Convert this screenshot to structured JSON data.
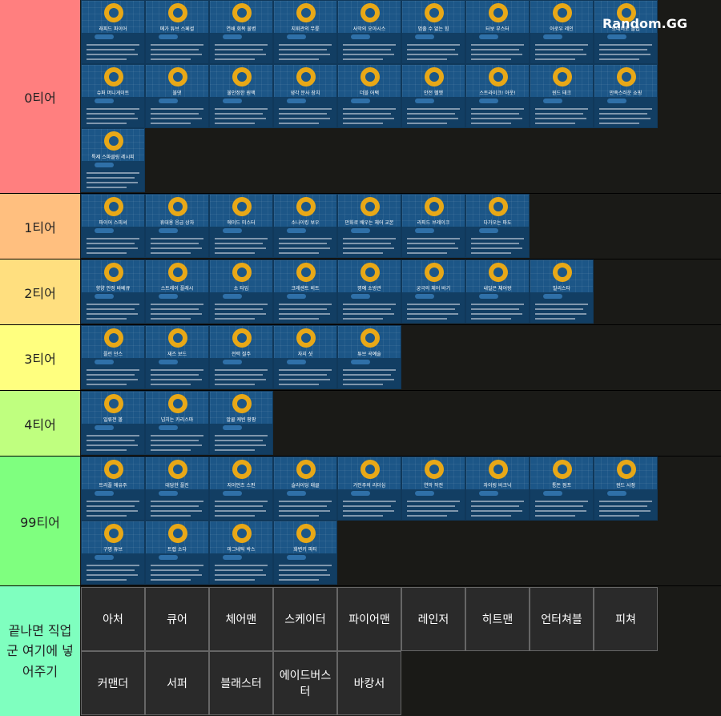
{
  "logo": "Random.GG",
  "tiers": [
    {
      "label": "0티어",
      "cards": [
        "래피드 파이어",
        "메가 튜브 스페셜",
        "연쇄 회복 물병",
        "지휘관의 무릎",
        "사막의 오아시스",
        "멈출 수 없는 힘",
        "터보 부스터",
        "아로우 레인",
        "토네이도 클럽",
        "슈퍼 머니게이트",
        "불댓",
        "불안정한 원액",
        "냉각 분사 장치",
        "더블 어택",
        "안전 헬멧",
        "스트라이크! 아웃!",
        "윈드 태크",
        "만족스러운 쇼핑",
        "특제 스파클링 레시피"
      ]
    },
    {
      "label": "1티어",
      "cards": [
        "파이어 스피셔",
        "휴대용 응급 상자",
        "에이드 미스터",
        "소나이킹 보우",
        "만화로 배우는 체어 교본",
        "라피드 브레이크",
        "다가오는 파도"
      ]
    },
    {
      "label": "2티어",
      "cards": [
        "향양 안정 바베큐",
        "스트레이 플래시",
        "소 타임",
        "크레센트 비트",
        "명예 소방관",
        "궁극의 체어 바기",
        "내일은 체어왕",
        "발리스타"
      ]
    },
    {
      "label": "3티어",
      "cards": [
        "플린 던스",
        "재즈 보드",
        "전력 질주",
        "자지 샷",
        "튜브 곡예술"
      ]
    },
    {
      "label": "4티어",
      "cards": [
        "일류전 볼",
        "넘치는 카리스마",
        "알쿨 케빈 팡팡"
      ]
    },
    {
      "label": "99티어",
      "cards": [
        "트리플 에유주",
        "대담한 플진",
        "지이언즈 스핀",
        "슬라이딩 태클",
        "거인주의 리더십",
        "연막 작전",
        "자이링 비크닉",
        "통돈 점프",
        "윈드 사정",
        "구명 튜브",
        "트랩 소다",
        "마그네틱 박스",
        "화변키 파티"
      ]
    }
  ],
  "pool": {
    "label": "끝나면 직업군 여기에 넣어주기",
    "items": [
      "아처",
      "큐어",
      "체어맨",
      "스케이터",
      "파이어맨",
      "레인저",
      "히트맨",
      "언터쳐블",
      "피쳐",
      "커맨더",
      "서퍼",
      "블래스터",
      "에이드버스터",
      "바캉서"
    ]
  }
}
